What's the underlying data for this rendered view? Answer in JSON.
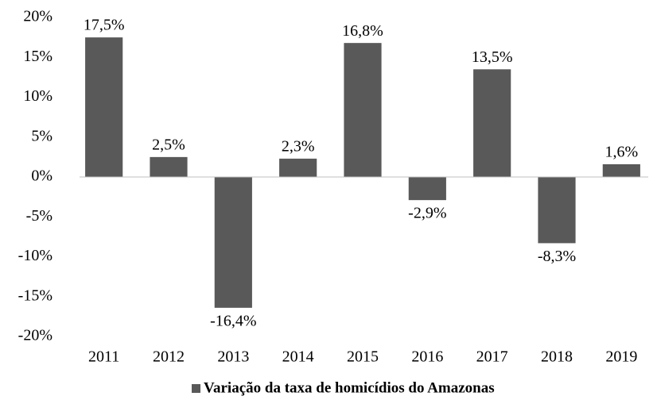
{
  "chart_data": {
    "type": "bar",
    "categories": [
      "2011",
      "2012",
      "2013",
      "2014",
      "2015",
      "2016",
      "2017",
      "2018",
      "2019"
    ],
    "series": [
      {
        "name": "Variação da taxa de homicídios do Amazonas",
        "color": "#595959",
        "values": [
          17.5,
          2.5,
          -16.4,
          2.3,
          16.8,
          -2.9,
          13.5,
          -8.3,
          1.6
        ],
        "value_labels": [
          "17,5%",
          "2,5%",
          "-16,4%",
          "2,3%",
          "16,8%",
          "-2,9%",
          "13,5%",
          "-8,3%",
          "1,6%"
        ]
      }
    ],
    "ylim": [
      -20,
      20
    ],
    "yticks": [
      {
        "value": -20,
        "label": "-20%"
      },
      {
        "value": -15,
        "label": "-15%"
      },
      {
        "value": -10,
        "label": "-10%"
      },
      {
        "value": -5,
        "label": "-5%"
      },
      {
        "value": 0,
        "label": "0%"
      },
      {
        "value": 5,
        "label": "5%"
      },
      {
        "value": 10,
        "label": "10%"
      },
      {
        "value": 15,
        "label": "15%"
      },
      {
        "value": 20,
        "label": "20%"
      }
    ],
    "grid": false,
    "legend": "bottom"
  }
}
